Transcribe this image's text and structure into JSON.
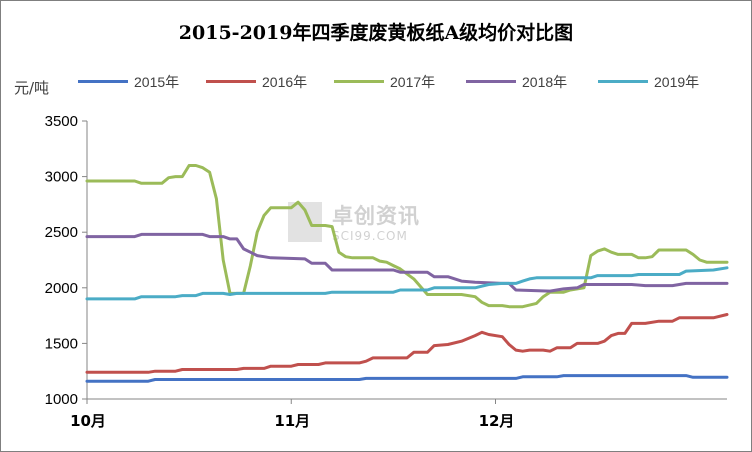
{
  "chart_data": {
    "type": "line",
    "title": "2015-2019年四季度废黄板纸A级均价对比图",
    "ylabel": "元/吨",
    "xlabel": "",
    "ylim": [
      1000,
      3500
    ],
    "yticks": [
      1000,
      1500,
      2000,
      2500,
      3000,
      3500
    ],
    "xlim": [
      0,
      90
    ],
    "categories": [
      "10月",
      "11月",
      "12月"
    ],
    "category_positions": [
      0,
      30,
      60
    ],
    "grid": false,
    "legend": "top",
    "series": [
      {
        "name": "2015年",
        "color": "#4472c4",
        "points": [
          [
            0,
            1160
          ],
          [
            9,
            1160
          ],
          [
            10,
            1175
          ],
          [
            40,
            1175
          ],
          [
            41,
            1185
          ],
          [
            63,
            1185
          ],
          [
            64,
            1200
          ],
          [
            69,
            1200
          ],
          [
            70,
            1210
          ],
          [
            88,
            1210
          ],
          [
            89,
            1195
          ],
          [
            94,
            1195
          ]
        ]
      },
      {
        "name": "2016年",
        "color": "#c0504d",
        "points": [
          [
            0,
            1240
          ],
          [
            9,
            1240
          ],
          [
            10,
            1250
          ],
          [
            13,
            1250
          ],
          [
            14,
            1265
          ],
          [
            22,
            1265
          ],
          [
            23,
            1275
          ],
          [
            26,
            1275
          ],
          [
            27,
            1295
          ],
          [
            30,
            1295
          ],
          [
            31,
            1310
          ],
          [
            34,
            1310
          ],
          [
            35,
            1325
          ],
          [
            40,
            1325
          ],
          [
            41,
            1340
          ],
          [
            42,
            1370
          ],
          [
            47,
            1370
          ],
          [
            48,
            1420
          ],
          [
            49,
            1420
          ],
          [
            50,
            1420
          ],
          [
            51,
            1480
          ],
          [
            53,
            1490
          ],
          [
            55,
            1520
          ],
          [
            57,
            1570
          ],
          [
            58,
            1600
          ],
          [
            59,
            1580
          ],
          [
            61,
            1560
          ],
          [
            62,
            1490
          ],
          [
            63,
            1440
          ],
          [
            64,
            1430
          ],
          [
            65,
            1440
          ],
          [
            67,
            1440
          ],
          [
            68,
            1430
          ],
          [
            69,
            1460
          ],
          [
            71,
            1460
          ],
          [
            72,
            1500
          ],
          [
            75,
            1500
          ],
          [
            76,
            1520
          ],
          [
            77,
            1570
          ],
          [
            78,
            1590
          ],
          [
            79,
            1590
          ],
          [
            80,
            1680
          ],
          [
            82,
            1680
          ],
          [
            84,
            1700
          ],
          [
            86,
            1700
          ],
          [
            87,
            1730
          ],
          [
            92,
            1730
          ],
          [
            94,
            1760
          ]
        ]
      },
      {
        "name": "2017年",
        "color": "#9bbb59",
        "points": [
          [
            0,
            2960
          ],
          [
            7,
            2960
          ],
          [
            8,
            2940
          ],
          [
            11,
            2940
          ],
          [
            12,
            2990
          ],
          [
            13,
            3000
          ],
          [
            14,
            3000
          ],
          [
            15,
            3100
          ],
          [
            16,
            3100
          ],
          [
            17,
            3080
          ],
          [
            18,
            3040
          ],
          [
            19,
            2800
          ],
          [
            20,
            2250
          ],
          [
            21,
            1950
          ],
          [
            23,
            1950
          ],
          [
            24,
            2200
          ],
          [
            25,
            2500
          ],
          [
            26,
            2650
          ],
          [
            27,
            2720
          ],
          [
            30,
            2720
          ],
          [
            31,
            2770
          ],
          [
            32,
            2700
          ],
          [
            33,
            2560
          ],
          [
            35,
            2560
          ],
          [
            36,
            2550
          ],
          [
            37,
            2320
          ],
          [
            38,
            2280
          ],
          [
            39,
            2270
          ],
          [
            42,
            2270
          ],
          [
            43,
            2240
          ],
          [
            44,
            2230
          ],
          [
            45,
            2200
          ],
          [
            46,
            2170
          ],
          [
            48,
            2080
          ],
          [
            50,
            1940
          ],
          [
            55,
            1940
          ],
          [
            57,
            1920
          ],
          [
            58,
            1870
          ],
          [
            59,
            1840
          ],
          [
            61,
            1840
          ],
          [
            62,
            1830
          ],
          [
            64,
            1830
          ],
          [
            66,
            1860
          ],
          [
            67,
            1920
          ],
          [
            68,
            1960
          ],
          [
            70,
            1960
          ],
          [
            71,
            1980
          ],
          [
            73,
            2000
          ],
          [
            74,
            2290
          ],
          [
            75,
            2330
          ],
          [
            76,
            2350
          ],
          [
            77,
            2320
          ],
          [
            78,
            2300
          ],
          [
            80,
            2300
          ],
          [
            81,
            2270
          ],
          [
            82,
            2270
          ],
          [
            83,
            2280
          ],
          [
            84,
            2340
          ],
          [
            88,
            2340
          ],
          [
            89,
            2300
          ],
          [
            90,
            2250
          ],
          [
            91,
            2230
          ],
          [
            94,
            2230
          ]
        ]
      },
      {
        "name": "2018年",
        "color": "#8064a2",
        "points": [
          [
            0,
            2460
          ],
          [
            7,
            2460
          ],
          [
            8,
            2480
          ],
          [
            17,
            2480
          ],
          [
            18,
            2460
          ],
          [
            20,
            2460
          ],
          [
            21,
            2440
          ],
          [
            22,
            2440
          ],
          [
            23,
            2350
          ],
          [
            24,
            2320
          ],
          [
            25,
            2290
          ],
          [
            26,
            2280
          ],
          [
            27,
            2270
          ],
          [
            32,
            2260
          ],
          [
            33,
            2220
          ],
          [
            35,
            2220
          ],
          [
            36,
            2160
          ],
          [
            45,
            2160
          ],
          [
            46,
            2140
          ],
          [
            50,
            2140
          ],
          [
            51,
            2100
          ],
          [
            53,
            2100
          ],
          [
            55,
            2060
          ],
          [
            57,
            2050
          ],
          [
            61,
            2040
          ],
          [
            62,
            2040
          ],
          [
            63,
            1980
          ],
          [
            68,
            1970
          ],
          [
            70,
            1990
          ],
          [
            72,
            2000
          ],
          [
            73,
            2030
          ],
          [
            80,
            2030
          ],
          [
            82,
            2020
          ],
          [
            86,
            2020
          ],
          [
            87,
            2030
          ],
          [
            88,
            2040
          ],
          [
            94,
            2040
          ]
        ]
      },
      {
        "name": "2019年",
        "color": "#4bacc6",
        "points": [
          [
            0,
            1900
          ],
          [
            7,
            1900
          ],
          [
            8,
            1920
          ],
          [
            13,
            1920
          ],
          [
            14,
            1930
          ],
          [
            16,
            1930
          ],
          [
            17,
            1950
          ],
          [
            20,
            1950
          ],
          [
            21,
            1940
          ],
          [
            22,
            1950
          ],
          [
            35,
            1950
          ],
          [
            36,
            1960
          ],
          [
            45,
            1960
          ],
          [
            46,
            1980
          ],
          [
            50,
            1980
          ],
          [
            51,
            2000
          ],
          [
            57,
            2000
          ],
          [
            59,
            2030
          ],
          [
            61,
            2040
          ],
          [
            63,
            2040
          ],
          [
            64,
            2060
          ],
          [
            65,
            2080
          ],
          [
            66,
            2090
          ],
          [
            74,
            2090
          ],
          [
            75,
            2110
          ],
          [
            80,
            2110
          ],
          [
            81,
            2120
          ],
          [
            87,
            2120
          ],
          [
            88,
            2150
          ],
          [
            92,
            2160
          ],
          [
            94,
            2180
          ]
        ]
      }
    ]
  },
  "watermark": {
    "logo_text": "卓创资讯",
    "logo_sub": "SCI99.COM"
  }
}
